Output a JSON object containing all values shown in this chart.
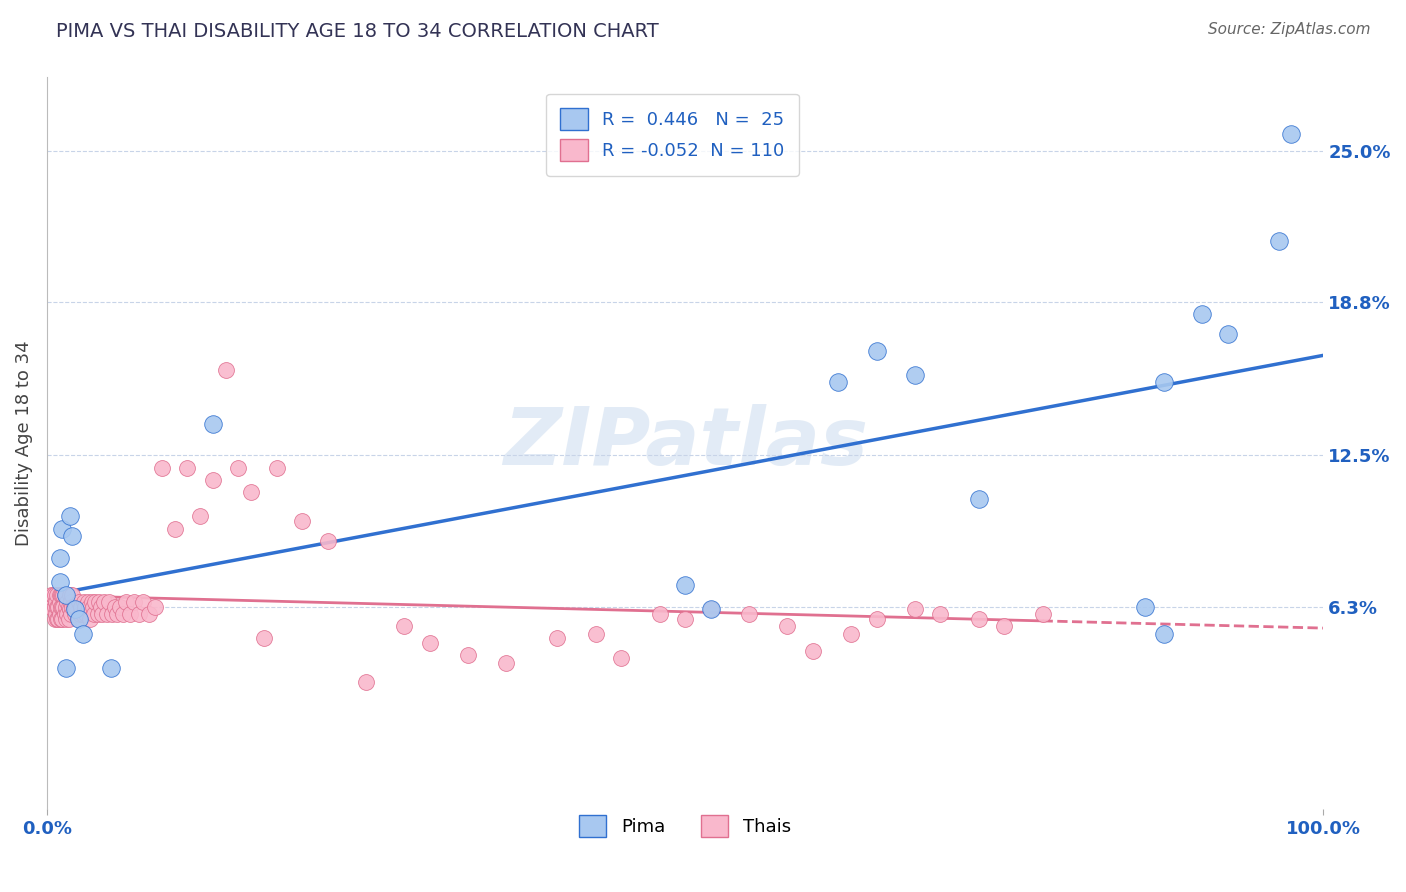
{
  "title": "PIMA VS THAI DISABILITY AGE 18 TO 34 CORRELATION CHART",
  "source": "Source: ZipAtlas.com",
  "ylabel": "Disability Age 18 to 34",
  "xlim": [
    0,
    1.0
  ],
  "ylim": [
    -0.02,
    0.28
  ],
  "xticklabels": [
    "0.0%",
    "100.0%"
  ],
  "ytick_values": [
    0.063,
    0.125,
    0.188,
    0.25
  ],
  "ytick_labels": [
    "6.3%",
    "12.5%",
    "18.8%",
    "25.0%"
  ],
  "pima_color": "#a8c8f0",
  "thais_color": "#f9b8cc",
  "pima_line_color": "#3070d0",
  "thais_line_color": "#e07090",
  "pima_R": 0.446,
  "pima_N": 25,
  "thais_R": -0.052,
  "thais_N": 110,
  "watermark": "ZIPatlas",
  "watermark_color": "#d0dff0",
  "background_color": "#ffffff",
  "grid_color": "#c8d4e8",
  "pima_x": [
    0.01,
    0.01,
    0.012,
    0.015,
    0.015,
    0.018,
    0.02,
    0.022,
    0.025,
    0.028,
    0.05,
    0.13,
    0.5,
    0.52,
    0.62,
    0.65,
    0.68,
    0.73,
    0.86,
    0.875,
    0.875,
    0.905,
    0.925,
    0.965,
    0.975
  ],
  "pima_y": [
    0.083,
    0.073,
    0.095,
    0.068,
    0.038,
    0.1,
    0.092,
    0.062,
    0.058,
    0.052,
    0.038,
    0.138,
    0.072,
    0.062,
    0.155,
    0.168,
    0.158,
    0.107,
    0.063,
    0.052,
    0.155,
    0.183,
    0.175,
    0.213,
    0.257
  ],
  "thais_x": [
    0.003,
    0.004,
    0.005,
    0.005,
    0.006,
    0.006,
    0.006,
    0.007,
    0.007,
    0.008,
    0.008,
    0.008,
    0.009,
    0.009,
    0.01,
    0.01,
    0.01,
    0.011,
    0.011,
    0.011,
    0.012,
    0.012,
    0.012,
    0.013,
    0.013,
    0.014,
    0.014,
    0.015,
    0.015,
    0.015,
    0.016,
    0.016,
    0.017,
    0.017,
    0.018,
    0.018,
    0.019,
    0.019,
    0.02,
    0.02,
    0.021,
    0.022,
    0.023,
    0.024,
    0.025,
    0.026,
    0.027,
    0.028,
    0.029,
    0.03,
    0.031,
    0.032,
    0.033,
    0.034,
    0.035,
    0.036,
    0.037,
    0.038,
    0.04,
    0.041,
    0.042,
    0.043,
    0.045,
    0.047,
    0.049,
    0.051,
    0.053,
    0.055,
    0.057,
    0.06,
    0.062,
    0.065,
    0.068,
    0.072,
    0.075,
    0.08,
    0.085,
    0.09,
    0.1,
    0.11,
    0.12,
    0.13,
    0.14,
    0.15,
    0.16,
    0.17,
    0.18,
    0.2,
    0.22,
    0.25,
    0.28,
    0.3,
    0.33,
    0.36,
    0.4,
    0.43,
    0.45,
    0.48,
    0.5,
    0.52,
    0.55,
    0.58,
    0.6,
    0.63,
    0.65,
    0.68,
    0.7,
    0.73,
    0.75,
    0.78
  ],
  "thais_y": [
    0.068,
    0.063,
    0.068,
    0.062,
    0.063,
    0.068,
    0.058,
    0.065,
    0.06,
    0.068,
    0.063,
    0.058,
    0.063,
    0.058,
    0.068,
    0.065,
    0.06,
    0.068,
    0.063,
    0.058,
    0.068,
    0.063,
    0.058,
    0.068,
    0.063,
    0.068,
    0.06,
    0.068,
    0.063,
    0.058,
    0.065,
    0.06,
    0.063,
    0.058,
    0.068,
    0.062,
    0.065,
    0.06,
    0.068,
    0.063,
    0.063,
    0.06,
    0.063,
    0.058,
    0.065,
    0.06,
    0.063,
    0.06,
    0.065,
    0.063,
    0.06,
    0.065,
    0.063,
    0.058,
    0.065,
    0.063,
    0.06,
    0.065,
    0.06,
    0.065,
    0.063,
    0.06,
    0.065,
    0.06,
    0.065,
    0.06,
    0.063,
    0.06,
    0.063,
    0.06,
    0.065,
    0.06,
    0.065,
    0.06,
    0.065,
    0.06,
    0.063,
    0.12,
    0.095,
    0.12,
    0.1,
    0.115,
    0.16,
    0.12,
    0.11,
    0.05,
    0.12,
    0.098,
    0.09,
    0.032,
    0.055,
    0.048,
    0.043,
    0.04,
    0.05,
    0.052,
    0.042,
    0.06,
    0.058,
    0.062,
    0.06,
    0.055,
    0.045,
    0.052,
    0.058,
    0.062,
    0.06,
    0.058,
    0.055,
    0.06
  ]
}
